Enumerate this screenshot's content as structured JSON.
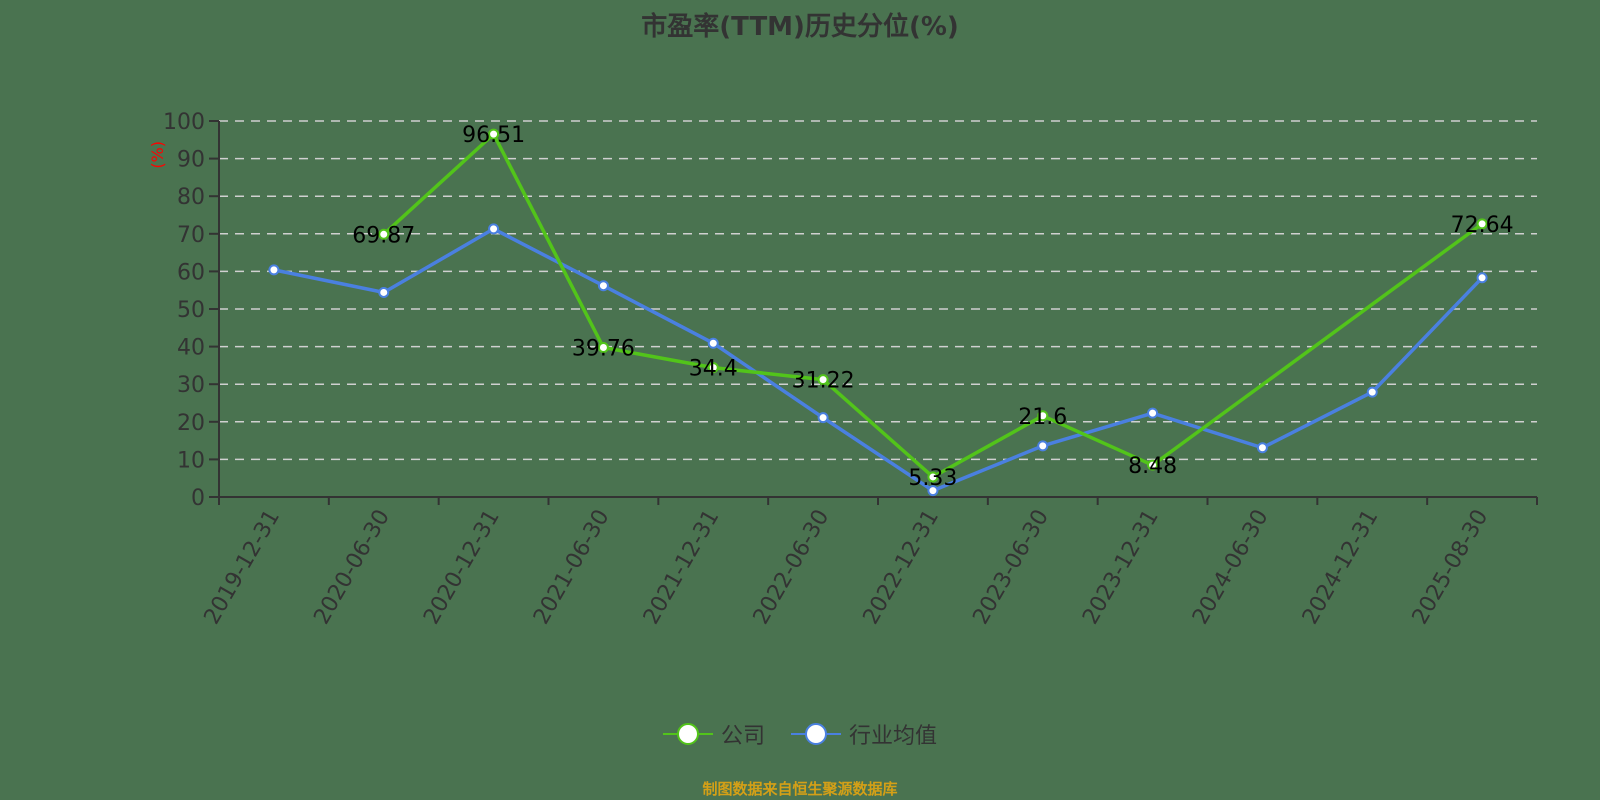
{
  "chart_data": {
    "type": "line",
    "title": "市盈率(TTM)历史分位(%)",
    "xlabel": "",
    "ylabel": "(%)",
    "ylim": [
      0,
      100
    ],
    "yticks": [
      0,
      10,
      20,
      30,
      40,
      50,
      60,
      70,
      80,
      90,
      100
    ],
    "grid": true,
    "legend_position": "bottom",
    "categories": [
      "2019-12-31",
      "2020-06-30",
      "2020-12-31",
      "2021-06-30",
      "2021-12-31",
      "2022-06-30",
      "2022-12-31",
      "2023-06-30",
      "2023-12-31",
      "2024-06-30",
      "2024-12-31",
      "2025-08-30"
    ],
    "series": [
      {
        "name": "公司",
        "color": "#52c41a",
        "values": [
          null,
          69.87,
          96.51,
          39.76,
          34.4,
          31.22,
          5.33,
          21.6,
          8.48,
          null,
          null,
          72.64
        ],
        "labels": true
      },
      {
        "name": "行业均值",
        "color": "#4a80e0",
        "values": [
          60.4,
          54.4,
          71.3,
          56.2,
          40.9,
          21.1,
          1.7,
          13.6,
          22.3,
          13.1,
          27.9,
          58.3
        ],
        "labels": false
      }
    ]
  },
  "title": "市盈率(TTM)历史分位(%)",
  "legend": [
    {
      "label": "公司",
      "color": "#52c41a"
    },
    {
      "label": "行业均值",
      "color": "#4a80e0"
    }
  ],
  "footer": "制图数据来自恒生聚源数据库",
  "colors": {
    "background": "#4a7350",
    "axis": "#333333",
    "grid": "#d0d0d0",
    "ylabel": "#ff0000",
    "footer": "#d4a017"
  }
}
